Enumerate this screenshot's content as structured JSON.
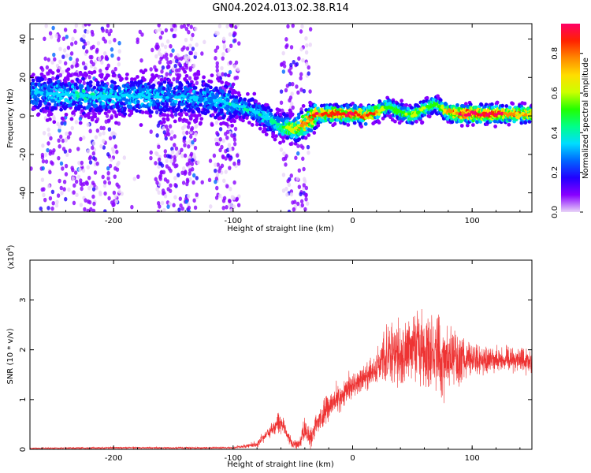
{
  "title": "GN04.2024.013.02.38.R14",
  "chart_data": [
    {
      "type": "heatmap",
      "xlabel": "Height of straight line (km)",
      "ylabel": "Frequency (Hz)",
      "xlim": [
        -270,
        150
      ],
      "ylim": [
        -50,
        48
      ],
      "x_ticks": [
        -200,
        -100,
        0,
        100
      ],
      "y_ticks": [
        -40,
        -20,
        0,
        20,
        40
      ],
      "colorbar": {
        "label": "Normalized spectral amplitude",
        "range": [
          0,
          0.95
        ],
        "ticks": [
          "0.0",
          "0.2",
          "0.4",
          "0.6",
          "0.8"
        ],
        "colors": [
          "#e8d4f8",
          "#8800ff",
          "#2200ff",
          "#0066ff",
          "#00ddff",
          "#00ff88",
          "#22ff00",
          "#ccff00",
          "#ffdd00",
          "#ff8800",
          "#ff2200",
          "#ff0066"
        ]
      },
      "ridge": {
        "x": [
          -270,
          -240,
          -200,
          -150,
          -120,
          -100,
          -80,
          -60,
          -50,
          -40,
          -30,
          -10,
          0,
          10,
          20,
          30,
          40,
          50,
          60,
          70,
          80,
          90,
          100,
          120,
          150
        ],
        "y": [
          12,
          11,
          10,
          10,
          9,
          6,
          2,
          -5,
          -7,
          -4,
          1,
          1,
          1,
          0,
          2,
          5,
          2,
          0,
          4,
          6,
          2,
          1,
          1,
          1,
          1
        ],
        "intensity": [
          0.3,
          0.35,
          0.35,
          0.3,
          0.3,
          0.35,
          0.35,
          0.45,
          0.6,
          0.75,
          0.8,
          0.85,
          0.85,
          0.8,
          0.75,
          0.5,
          0.5,
          0.6,
          0.55,
          0.5,
          0.7,
          0.85,
          0.9,
          0.85,
          0.7
        ]
      }
    },
    {
      "type": "line",
      "xlabel": "Height of straight line (km)",
      "ylabel": "SNR (10 * v/v)",
      "y_scale_note": "(x10^4)",
      "xlim": [
        -270,
        150
      ],
      "ylim": [
        0,
        3.8
      ],
      "x_ticks": [
        -200,
        -100,
        0,
        100
      ],
      "y_ticks": [
        0,
        1,
        2,
        3
      ],
      "color": "#ee3333",
      "envelope": {
        "x": [
          -270,
          -200,
          -100,
          -80,
          -70,
          -60,
          -55,
          -50,
          -45,
          -40,
          -35,
          -30,
          -20,
          -10,
          0,
          10,
          20,
          30,
          40,
          50,
          60,
          70,
          80,
          90,
          100,
          110,
          120,
          130,
          140,
          150
        ],
        "mean": [
          0.02,
          0.03,
          0.03,
          0.1,
          0.35,
          0.55,
          0.3,
          0.1,
          0.1,
          0.4,
          0.2,
          0.55,
          0.85,
          1.05,
          1.3,
          1.45,
          1.65,
          1.9,
          1.95,
          2.0,
          1.95,
          1.9,
          1.85,
          1.8,
          1.8,
          1.8,
          1.8,
          1.8,
          1.8,
          1.8
        ],
        "spread": [
          0.02,
          0.03,
          0.03,
          0.1,
          0.2,
          0.3,
          0.2,
          0.1,
          0.15,
          0.35,
          0.3,
          0.4,
          0.45,
          0.45,
          0.4,
          0.35,
          0.5,
          0.8,
          1.0,
          1.0,
          1.1,
          1.2,
          1.0,
          0.7,
          0.5,
          0.4,
          0.4,
          0.4,
          0.4,
          0.4
        ]
      }
    }
  ]
}
